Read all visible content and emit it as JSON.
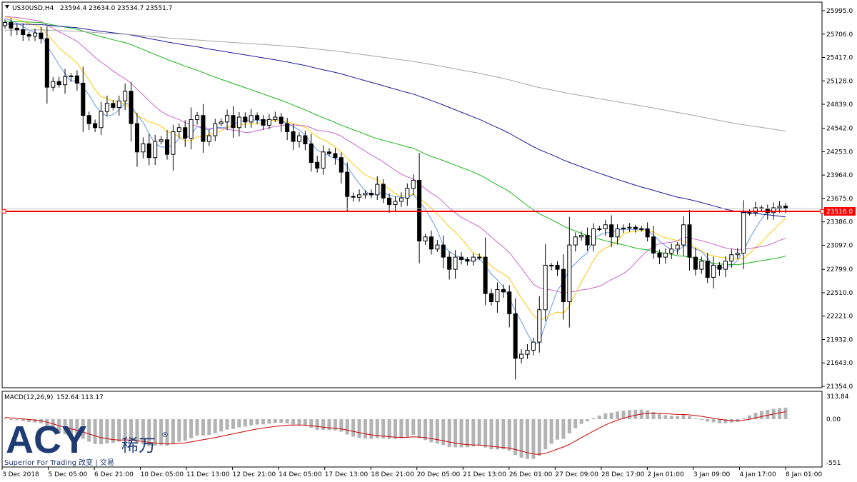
{
  "header": {
    "symbol": "US30USD,H4",
    "ohlc": "23594.4 23634.0 23534.7 23551.7"
  },
  "price_line": {
    "label": "23516.0",
    "value": 23516.0,
    "color": "#ff0000"
  },
  "macd": {
    "title": "MACD(12,26,9)",
    "values": "152.64 113.17",
    "axis_labels": [
      "313.84",
      "0.00",
      "-551"
    ],
    "signal_color": "#cc0000",
    "hist_color": "#b3b3b3"
  },
  "logo": {
    "brand": "ACY",
    "chinese": "稀万",
    "registered": "®",
    "tagline": "Superior For Trading 改变 | 交易"
  },
  "chart_data": {
    "type": "candlestick",
    "y_ticks": [
      "25995.0",
      "25706.0",
      "25417.0",
      "25128.0",
      "24839.0",
      "24542.0",
      "24253.0",
      "23964.0",
      "23675.0",
      "23386.0",
      "23097.0",
      "22799.0",
      "22510.0",
      "22221.0",
      "21932.0",
      "21643.0",
      "21354.0"
    ],
    "x_ticks": [
      "3 Dec 2018",
      "5 Dec 05:00",
      "6 Dec 21:00",
      "10 Dec 05:00",
      "11 Dec 13:00",
      "12 Dec 21:00",
      "14 Dec 05:00",
      "17 Dec 13:00",
      "18 Dec 21:00",
      "20 Dec 05:00",
      "21 Dec 13:00",
      "26 Dec 01:00",
      "27 Dec 09:00",
      "28 Dec 17:00",
      "2 Jan 01:00",
      "3 Jan 09:00",
      "4 Jan 17:00",
      "8 Jan 01:00"
    ],
    "ylim": [
      21354,
      25995
    ],
    "closes": [
      25850,
      25780,
      25760,
      25700,
      25680,
      25720,
      25650,
      25050,
      25120,
      25080,
      25180,
      25190,
      25100,
      24700,
      24600,
      24550,
      24750,
      24850,
      24800,
      24880,
      25000,
      24600,
      24250,
      24350,
      24180,
      24380,
      24400,
      24220,
      24500,
      24550,
      24420,
      24650,
      24700,
      24380,
      24450,
      24600,
      24620,
      24700,
      24550,
      24680,
      24620,
      24700,
      24650,
      24580,
      24650,
      24680,
      24600,
      24500,
      24380,
      24450,
      24350,
      24120,
      24050,
      24250,
      24230,
      24180,
      24000,
      23700,
      23690,
      23720,
      23740,
      23720,
      23850,
      23680,
      23600,
      23640,
      23680,
      23800,
      23900,
      23150,
      23200,
      23050,
      23100,
      22950,
      22800,
      22950,
      22920,
      22900,
      22950,
      22950,
      22500,
      22400,
      22550,
      22520,
      22250,
      21700,
      21750,
      21800,
      21900,
      22300,
      22850,
      22850,
      22800,
      22400,
      23100,
      23200,
      23220,
      23100,
      23300,
      23300,
      23350,
      23200,
      23300,
      23310,
      23320,
      23300,
      23300,
      23200,
      23000,
      22950,
      23000,
      23050,
      23100,
      23350,
      22950,
      22800,
      22900,
      22700,
      22850,
      22800,
      22900,
      22980,
      23000,
      23500,
      23500,
      23560,
      23550,
      23500,
      23560,
      23580,
      23551.7
    ],
    "ma_series": [
      {
        "color": "#6495ed"
      },
      {
        "color": "#ffc800"
      },
      {
        "color": "#c864c8"
      },
      {
        "color": "#19b419"
      },
      {
        "color": "#191996"
      },
      {
        "color": "#a5a5a5"
      }
    ],
    "ma_periods": [
      5,
      10,
      20,
      50,
      100,
      200
    ],
    "grid": false
  }
}
